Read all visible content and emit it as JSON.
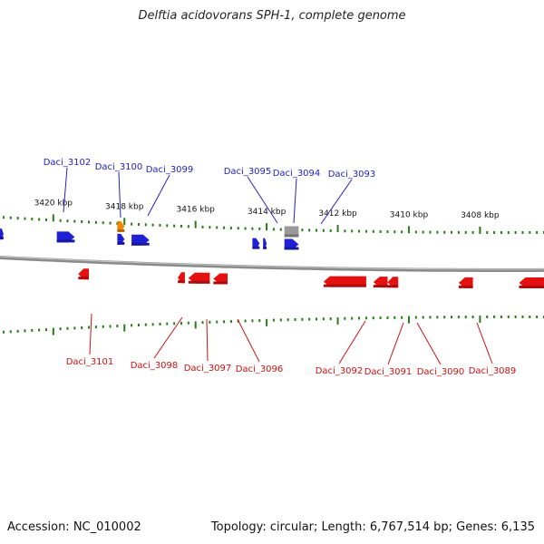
{
  "title": "Delftia acidovorans SPH-1, complete genome",
  "accession": "Accession: NC_010002",
  "summary": "Topology: circular; Length: 6,767,514 bp; Genes: 6,135",
  "axis": {
    "domain_kbp": [
      3421.5,
      3406.2
    ]
  },
  "ticks": [
    "3420 kbp",
    "3418 kbp",
    "3416 kbp",
    "3414 kbp",
    "3412 kbp",
    "3410 kbp",
    "3408 kbp"
  ],
  "genes": [
    {
      "strand": "+",
      "start": 3421.5,
      "end": 3421.4,
      "color": "#1f1fd6"
    },
    {
      "strand": "+",
      "start": 3419.9,
      "end": 3419.4,
      "color": "#1f1fd6"
    },
    {
      "strand": "+",
      "start": 3418.2,
      "end": 3418.0,
      "color": "#ee8800"
    },
    {
      "strand": "+",
      "start": 3418.2,
      "end": 3418.0,
      "color": "#1f1fd6"
    },
    {
      "strand": "+",
      "start": 3417.8,
      "end": 3417.3,
      "color": "#1f1fd6"
    },
    {
      "strand": "+",
      "start": 3414.4,
      "end": 3414.2,
      "color": "#1f1fd6"
    },
    {
      "strand": "+",
      "start": 3414.1,
      "end": 3414.0,
      "color": "#1f1fd6"
    },
    {
      "strand": "+",
      "start": 3413.5,
      "end": 3413.1,
      "color": "#1f1fd6"
    },
    {
      "strand": "+",
      "start": 3413.5,
      "end": 3413.1,
      "color": "#999999"
    },
    {
      "strand": "-",
      "start": 3419.3,
      "end": 3419.0,
      "color": "#e51010"
    },
    {
      "strand": "-",
      "start": 3416.5,
      "end": 3416.3,
      "color": "#e51010"
    },
    {
      "strand": "-",
      "start": 3416.2,
      "end": 3415.6,
      "color": "#e51010"
    },
    {
      "strand": "-",
      "start": 3415.5,
      "end": 3415.1,
      "color": "#e51010"
    },
    {
      "strand": "-",
      "start": 3412.4,
      "end": 3411.2,
      "color": "#e51010"
    },
    {
      "strand": "-",
      "start": 3411.0,
      "end": 3410.6,
      "color": "#e51010"
    },
    {
      "strand": "-",
      "start": 3410.6,
      "end": 3410.3,
      "color": "#e51010"
    },
    {
      "strand": "-",
      "start": 3408.6,
      "end": 3408.2,
      "color": "#e51010"
    },
    {
      "strand": "-",
      "start": 3406.9,
      "end": 3406.2,
      "color": "#e51010"
    }
  ],
  "labels": [
    {
      "text": "Daci_3102",
      "strand": "+",
      "color": "#2222bb"
    },
    {
      "text": "Daci_3100",
      "strand": "+",
      "color": "#2222bb"
    },
    {
      "text": "Daci_3099",
      "strand": "+",
      "color": "#2222bb"
    },
    {
      "text": "Daci_3095",
      "strand": "+",
      "color": "#2222bb"
    },
    {
      "text": "Daci_3094",
      "strand": "+",
      "color": "#2222bb"
    },
    {
      "text": "Daci_3093",
      "strand": "+",
      "color": "#2222bb"
    },
    {
      "text": "Daci_3101",
      "strand": "-",
      "color": "#cc1111"
    },
    {
      "text": "Daci_3098",
      "strand": "-",
      "color": "#cc1111"
    },
    {
      "text": "Daci_3097",
      "strand": "-",
      "color": "#cc1111"
    },
    {
      "text": "Daci_3096",
      "strand": "-",
      "color": "#cc1111"
    },
    {
      "text": "Daci_3092",
      "strand": "-",
      "color": "#cc1111"
    },
    {
      "text": "Daci_3091",
      "strand": "-",
      "color": "#cc1111"
    },
    {
      "text": "Daci_3090",
      "strand": "-",
      "color": "#cc1111"
    },
    {
      "text": "Daci_3089",
      "strand": "-",
      "color": "#cc1111"
    }
  ],
  "colors": {
    "backbone": "#8a8a8a",
    "tick": "#2a7a1a",
    "forward": "#1f1fd6",
    "reverse": "#e51010"
  }
}
